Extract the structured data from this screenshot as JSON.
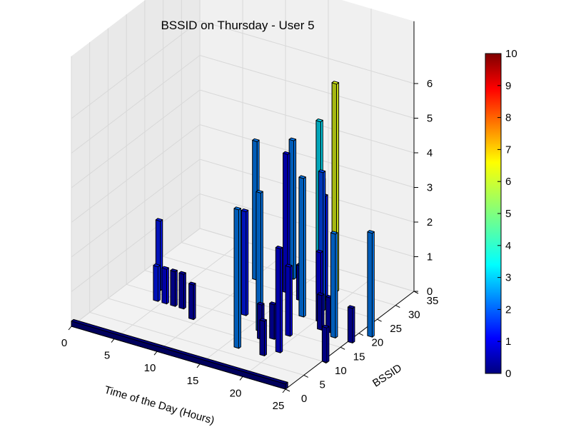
{
  "chart_data": {
    "type": "bar3d",
    "title": "BSSID on Thursday - User 5",
    "xlabel": "Time of the Day (Hours)",
    "ylabel": "BSSID",
    "zlabel": "",
    "xlim": [
      0,
      25
    ],
    "ylim": [
      0,
      35
    ],
    "zlim": [
      0,
      6
    ],
    "xticks": [
      "0",
      "5",
      "10",
      "15",
      "20",
      "25"
    ],
    "yticks": [
      "0",
      "5",
      "10",
      "15",
      "20",
      "25",
      "30",
      "35"
    ],
    "zticks": [
      "0",
      "1",
      "2",
      "3",
      "4",
      "5",
      "6"
    ],
    "colorbar": {
      "range": [
        0,
        10
      ],
      "ticks": [
        "0",
        "1",
        "2",
        "3",
        "4",
        "5",
        "6",
        "7",
        "8",
        "9",
        "10"
      ],
      "colormap": "jet"
    },
    "grid": true,
    "bars": [
      {
        "x": 19,
        "y": 23,
        "z": 4,
        "c": 2.0
      },
      {
        "x": 14,
        "y": 25,
        "z": 4,
        "c": 1.0
      },
      {
        "x": 17,
        "y": 27,
        "z": 5,
        "c": 3.5
      },
      {
        "x": 18,
        "y": 29,
        "z": 6,
        "c": 6.0
      },
      {
        "x": 18,
        "y": 26,
        "z": 3,
        "c": 1.5
      },
      {
        "x": 16,
        "y": 24,
        "z": 1,
        "c": 0.5
      },
      {
        "x": 20,
        "y": 20,
        "z": 2,
        "c": 1.0
      },
      {
        "x": 16,
        "y": 30,
        "z": 3,
        "c": 1.5
      },
      {
        "x": 10,
        "y": 26,
        "z": 4,
        "c": 2.5
      },
      {
        "x": 13,
        "y": 29,
        "z": 4,
        "c": 2.5
      },
      {
        "x": 18,
        "y": 20,
        "z": 4,
        "c": 2.5
      },
      {
        "x": 3,
        "y": 16,
        "z": 2,
        "c": 1.5
      },
      {
        "x": 4,
        "y": 13,
        "z": 1,
        "c": 1.5
      },
      {
        "x": 5,
        "y": 13,
        "z": 1,
        "c": 1.0
      },
      {
        "x": 6,
        "y": 13,
        "z": 1,
        "c": 0.5
      },
      {
        "x": 7,
        "y": 13,
        "z": 1,
        "c": 0.5
      },
      {
        "x": 13,
        "y": 16,
        "z": 3,
        "c": 1.5
      },
      {
        "x": 16,
        "y": 13,
        "z": 4,
        "c": 2.5
      },
      {
        "x": 21,
        "y": 18,
        "z": 1,
        "c": 0.5
      },
      {
        "x": 22,
        "y": 18,
        "z": 1,
        "c": 0.5
      },
      {
        "x": 17,
        "y": 11,
        "z": 1,
        "c": 0.5
      },
      {
        "x": 18,
        "y": 12,
        "z": 1,
        "c": 0.5
      },
      {
        "x": 19,
        "y": 14,
        "z": 2,
        "c": 1.0
      },
      {
        "x": 16,
        "y": 7,
        "z": 4,
        "c": 2.5
      },
      {
        "x": 19,
        "y": 7,
        "z": 1,
        "c": 0.5
      },
      {
        "x": 20,
        "y": 9,
        "z": 3,
        "c": 1.0
      },
      {
        "x": 9,
        "y": 11,
        "z": 1,
        "c": 0.5
      },
      {
        "x": 23,
        "y": 17,
        "z": 3,
        "c": 2.5
      },
      {
        "x": 25,
        "y": 17,
        "z": 1,
        "c": 0.5
      },
      {
        "x": 26,
        "y": 20,
        "z": 3,
        "c": 2.5
      },
      {
        "x": 25,
        "y": 10,
        "z": 1,
        "c": 0.5
      }
    ],
    "baseline_bar": {
      "x_from": 0,
      "x_to": 25,
      "y": 0,
      "z": 0,
      "c": 0
    }
  }
}
